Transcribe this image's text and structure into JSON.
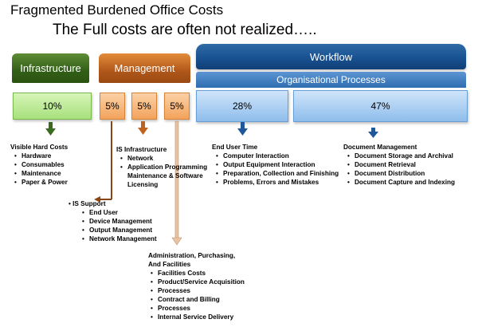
{
  "title": "Fragmented Burdened Office Costs",
  "subtitle": "The Full costs are often not realized…..",
  "headers": {
    "infrastructure": "Infrastructure",
    "management": "Management",
    "workflow": "Workflow",
    "org_processes": "Organisational Processes"
  },
  "percentages": {
    "infrastructure": "10%",
    "mgmt_1": "5%",
    "mgmt_2": "5%",
    "mgmt_3": "5%",
    "workflow_1": "28%",
    "workflow_2": "47%"
  },
  "colors": {
    "infrastructure": "#3a6b1e",
    "management": "#c0621f",
    "workflow": "#1f5799",
    "org_processes": "#3f7fc4"
  },
  "groups": {
    "visible_hard_costs": {
      "heading": "Visible Hard Costs",
      "items": [
        "Hardware",
        "Consumables",
        "Maintenance",
        "Paper & Power"
      ]
    },
    "is_infrastructure": {
      "heading": "IS Infrastructure",
      "items": [
        "Network",
        "Application Programming Maintenance & Software Licensing"
      ]
    },
    "is_support": {
      "heading": "IS Support",
      "items": [
        "End User",
        "Device Management",
        "Output Management",
        "Network Management"
      ]
    },
    "admin": {
      "heading_lines": [
        "Administration, Purchasing,",
        "And Facilities"
      ],
      "items": [
        "Facilities Costs",
        "Product/Service Acquisition",
        "Processes",
        "Contract and Billing",
        "Processes",
        "Internal Service Delivery"
      ]
    },
    "end_user_time": {
      "heading": "End User Time",
      "items": [
        "Computer Interaction",
        "Output Equipment Interaction",
        "Preparation, Collection and Finishing",
        "Problems, Errors and Mistakes"
      ]
    },
    "document_management": {
      "heading": "Document Management",
      "items": [
        "Document Storage and Archival",
        "Document Retrieval",
        "Document Distribution",
        "Document Capture and Indexing"
      ]
    }
  }
}
